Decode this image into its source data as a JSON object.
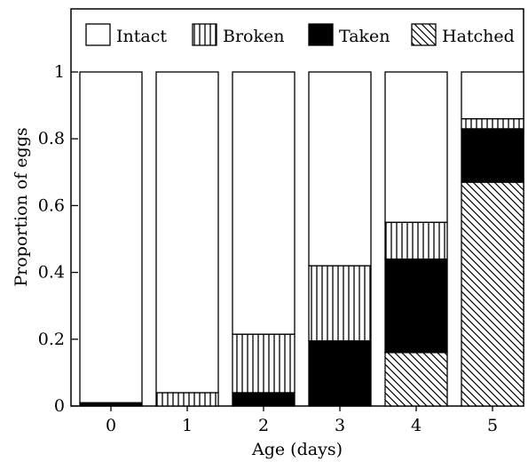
{
  "chart_data": {
    "type": "bar",
    "stacked": true,
    "title": "",
    "xlabel": "Age (days)",
    "ylabel": "Proportion of eggs",
    "ylim": [
      0,
      1
    ],
    "yticks": [
      "0",
      "0.2",
      "0.4",
      "0.6",
      "0.8",
      "1"
    ],
    "categories": [
      "0",
      "1",
      "2",
      "3",
      "4",
      "5"
    ],
    "legend_position": "top",
    "series": [
      {
        "name": "Hatched",
        "pattern": "hatched-diagonal",
        "values": [
          0,
          0,
          0,
          0,
          0.16,
          0.67
        ]
      },
      {
        "name": "Taken",
        "pattern": "solid-black",
        "values": [
          0.01,
          0,
          0.04,
          0.195,
          0.28,
          0.16
        ]
      },
      {
        "name": "Broken",
        "pattern": "vertical-lines",
        "values": [
          0,
          0.04,
          0.175,
          0.225,
          0.11,
          0.03
        ]
      },
      {
        "name": "Intact",
        "pattern": "white",
        "values": [
          0.99,
          0.96,
          0.785,
          0.58,
          0.45,
          0.14
        ]
      }
    ],
    "legend_order": [
      "Intact",
      "Broken",
      "Taken",
      "Hatched"
    ]
  }
}
